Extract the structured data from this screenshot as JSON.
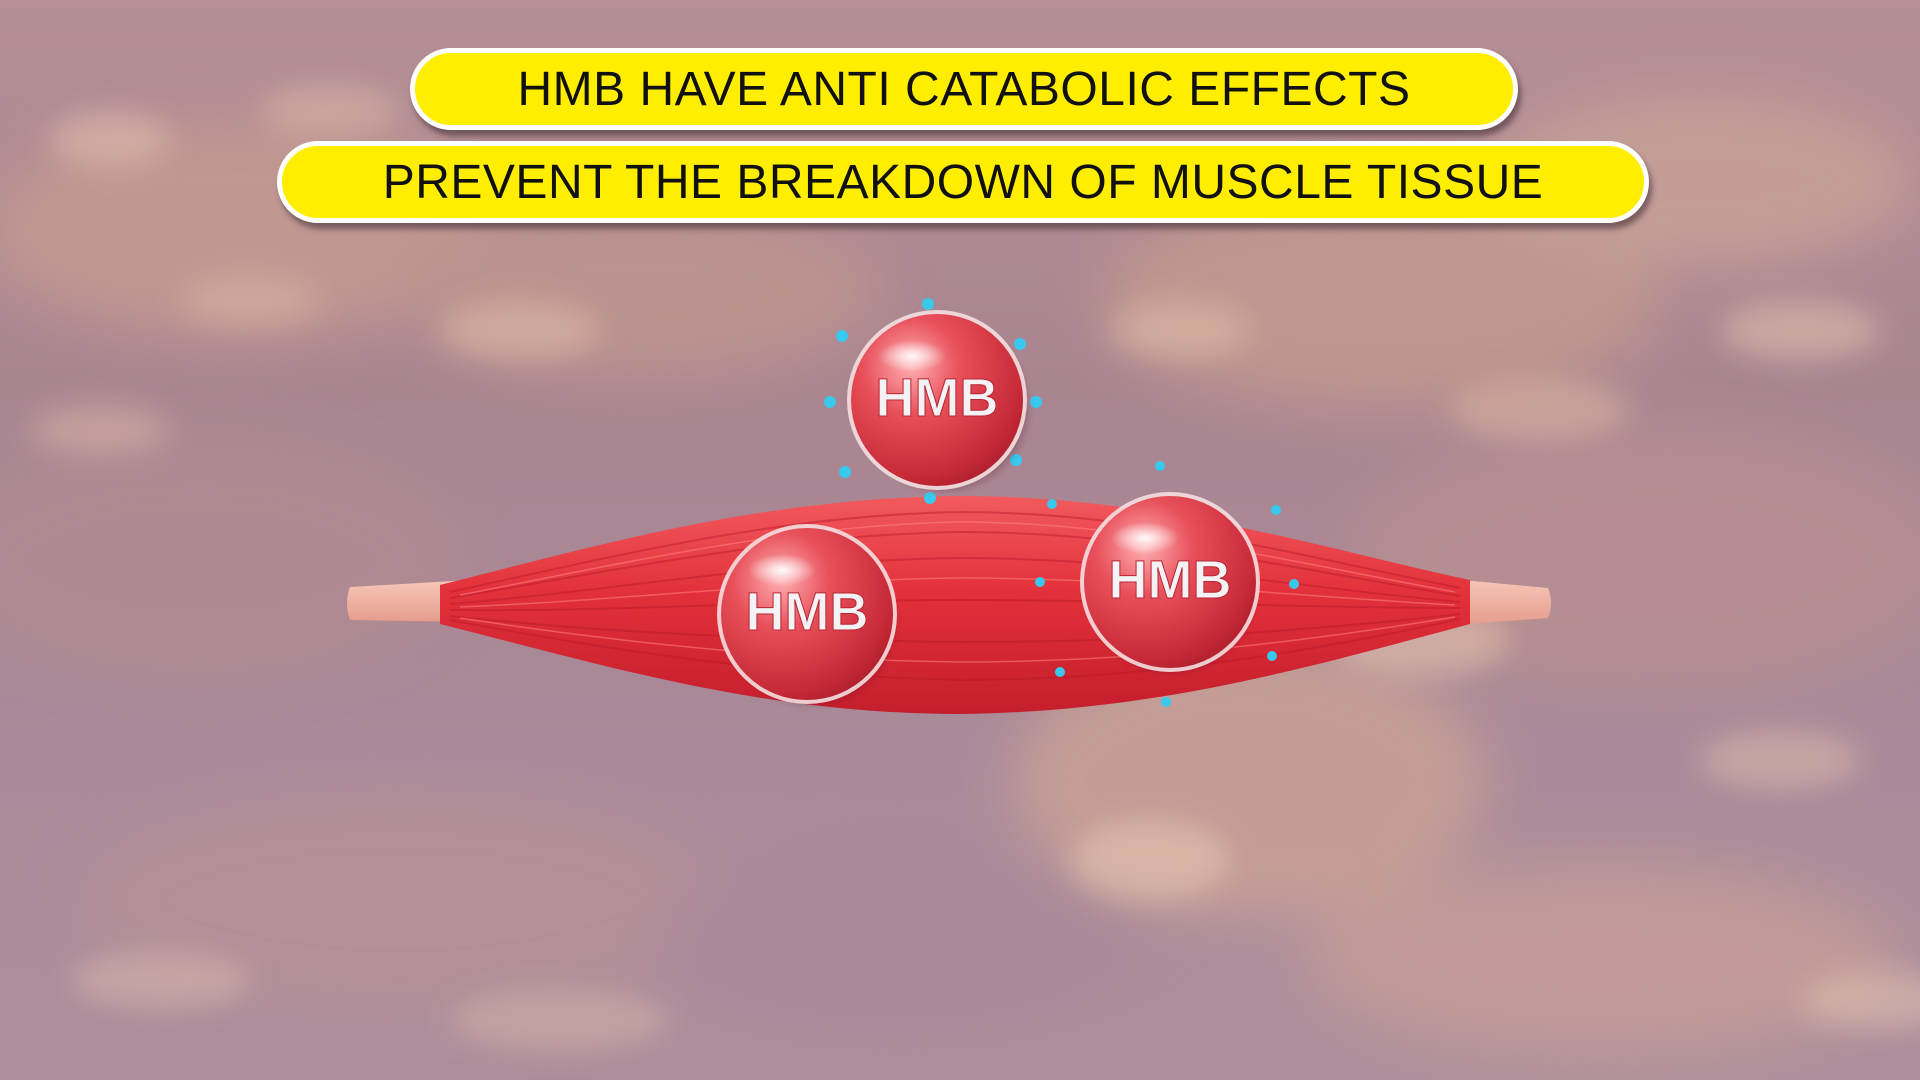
{
  "banners": {
    "title": "HMB HAVE ANTI CATABOLIC EFFECTS",
    "subtitle": "PREVENT THE BREAKDOWN OF MUSCLE TISSUE"
  },
  "molecules": [
    {
      "label": "HMB"
    },
    {
      "label": "HMB"
    },
    {
      "label": "HMB"
    }
  ],
  "colors": {
    "banner_fill": "#ffee00",
    "banner_border": "#ffffff",
    "banner_text": "#111111",
    "muscle": "#e0303a",
    "tendon": "#f0b0a0",
    "molecule": "#d83a48",
    "particles": "#39c8ee",
    "background": "#a98a96"
  }
}
